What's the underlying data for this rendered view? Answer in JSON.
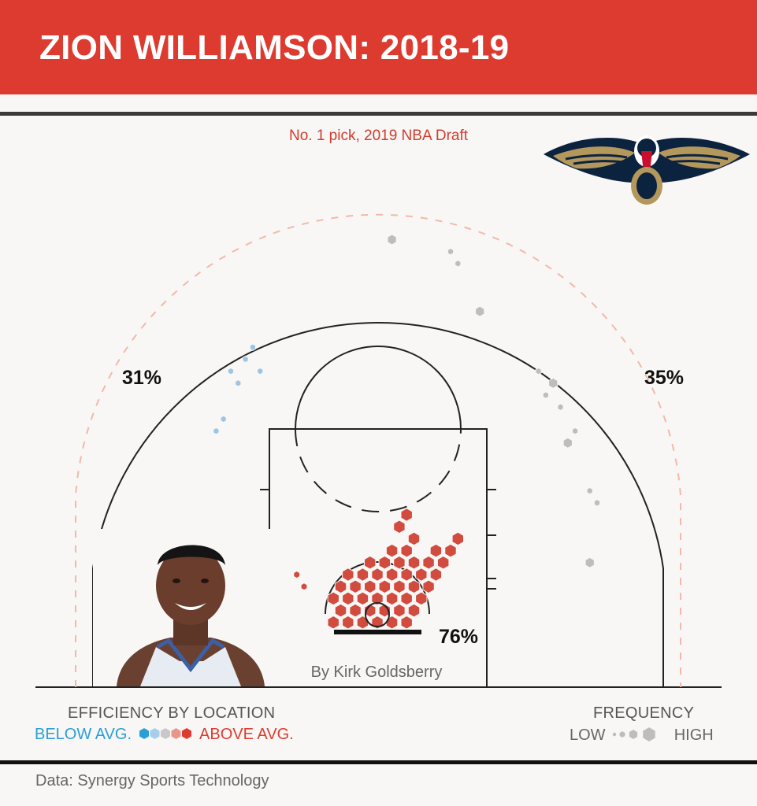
{
  "header": {
    "title": "ZION WILLIAMSON: 2018-19"
  },
  "subtitle": "No. 1 pick, 2019 NBA Draft",
  "logo": {
    "icon": "pelican-logo-icon",
    "colors": [
      "#0c2340",
      "#b4975a",
      "#c8102e"
    ]
  },
  "chart_data": {
    "type": "scatter",
    "subtype": "hexbin shot chart",
    "title": "ZION WILLIAMSON: 2018-19",
    "subtitle": "No. 1 pick, 2019 NBA Draft",
    "credit": "By Kirk Goldsberry",
    "zone_labels": [
      {
        "zone": "left three",
        "value": "31%"
      },
      {
        "zone": "right three",
        "value": "35%"
      },
      {
        "zone": "rim",
        "value": "76%"
      }
    ],
    "series": [
      {
        "name": "rim area (above avg)",
        "color": "#d24b3f",
        "points": [
          [
            -6,
            1
          ],
          [
            -4,
            1
          ],
          [
            -2,
            1
          ],
          [
            0,
            1
          ],
          [
            2,
            1
          ],
          [
            4,
            1
          ],
          [
            -5,
            2
          ],
          [
            -3,
            2
          ],
          [
            -1,
            2
          ],
          [
            1,
            2
          ],
          [
            3,
            2
          ],
          [
            5,
            2
          ],
          [
            -6,
            3
          ],
          [
            -4,
            3
          ],
          [
            -2,
            3
          ],
          [
            0,
            3
          ],
          [
            2,
            3
          ],
          [
            4,
            3
          ],
          [
            6,
            3
          ],
          [
            -5,
            4
          ],
          [
            -3,
            4
          ],
          [
            -1,
            4
          ],
          [
            1,
            4
          ],
          [
            3,
            4
          ],
          [
            5,
            4
          ],
          [
            7,
            4
          ],
          [
            -4,
            5
          ],
          [
            -2,
            5
          ],
          [
            0,
            5
          ],
          [
            2,
            5
          ],
          [
            4,
            5
          ],
          [
            6,
            5
          ],
          [
            8,
            5
          ],
          [
            -1,
            6
          ],
          [
            1,
            6
          ],
          [
            3,
            6
          ],
          [
            5,
            6
          ],
          [
            7,
            6
          ],
          [
            9,
            6
          ],
          [
            2,
            7
          ],
          [
            4,
            7
          ],
          [
            8,
            7
          ],
          [
            10,
            7
          ],
          [
            5,
            8
          ],
          [
            11,
            8
          ],
          [
            3,
            9
          ],
          [
            4,
            10
          ]
        ]
      },
      {
        "name": "left short corner (above avg)",
        "color": "#d24b3f",
        "points": [
          [
            -11,
            5
          ],
          [
            -10,
            4
          ]
        ]
      },
      {
        "name": "left three (below avg)",
        "color": "#9cc6e6",
        "points": [
          [
            -17,
            24
          ],
          [
            -16,
            22
          ],
          [
            -18,
            23
          ],
          [
            -19,
            21
          ],
          [
            -20,
            22
          ],
          [
            -21,
            18
          ],
          [
            -22,
            17
          ]
        ]
      },
      {
        "name": "right three (average)",
        "color": "#bdbdbd",
        "points": [
          [
            2,
            33
          ],
          [
            10,
            32
          ],
          [
            11,
            31
          ],
          [
            14,
            27
          ],
          [
            22,
            22
          ],
          [
            23,
            20
          ],
          [
            24,
            21
          ],
          [
            25,
            19
          ],
          [
            27,
            17
          ],
          [
            26,
            16
          ],
          [
            29,
            12
          ],
          [
            30,
            11
          ],
          [
            29,
            6
          ]
        ]
      }
    ],
    "units": "hex cell coordinates, basket at origin"
  },
  "legend": {
    "efficiency_title": "EFFICIENCY BY LOCATION",
    "below_label": "BELOW AVG.",
    "above_label": "ABOVE AVG.",
    "scale_colors": [
      "#2a9fd6",
      "#a6cde9",
      "#c8c8c8",
      "#e8968c",
      "#dd3b2f"
    ],
    "frequency_title": "FREQUENCY",
    "low_label": "LOW",
    "high_label": "HIGH"
  },
  "source": "Data: Synergy Sports Technology",
  "player_photo": "player-headshot"
}
